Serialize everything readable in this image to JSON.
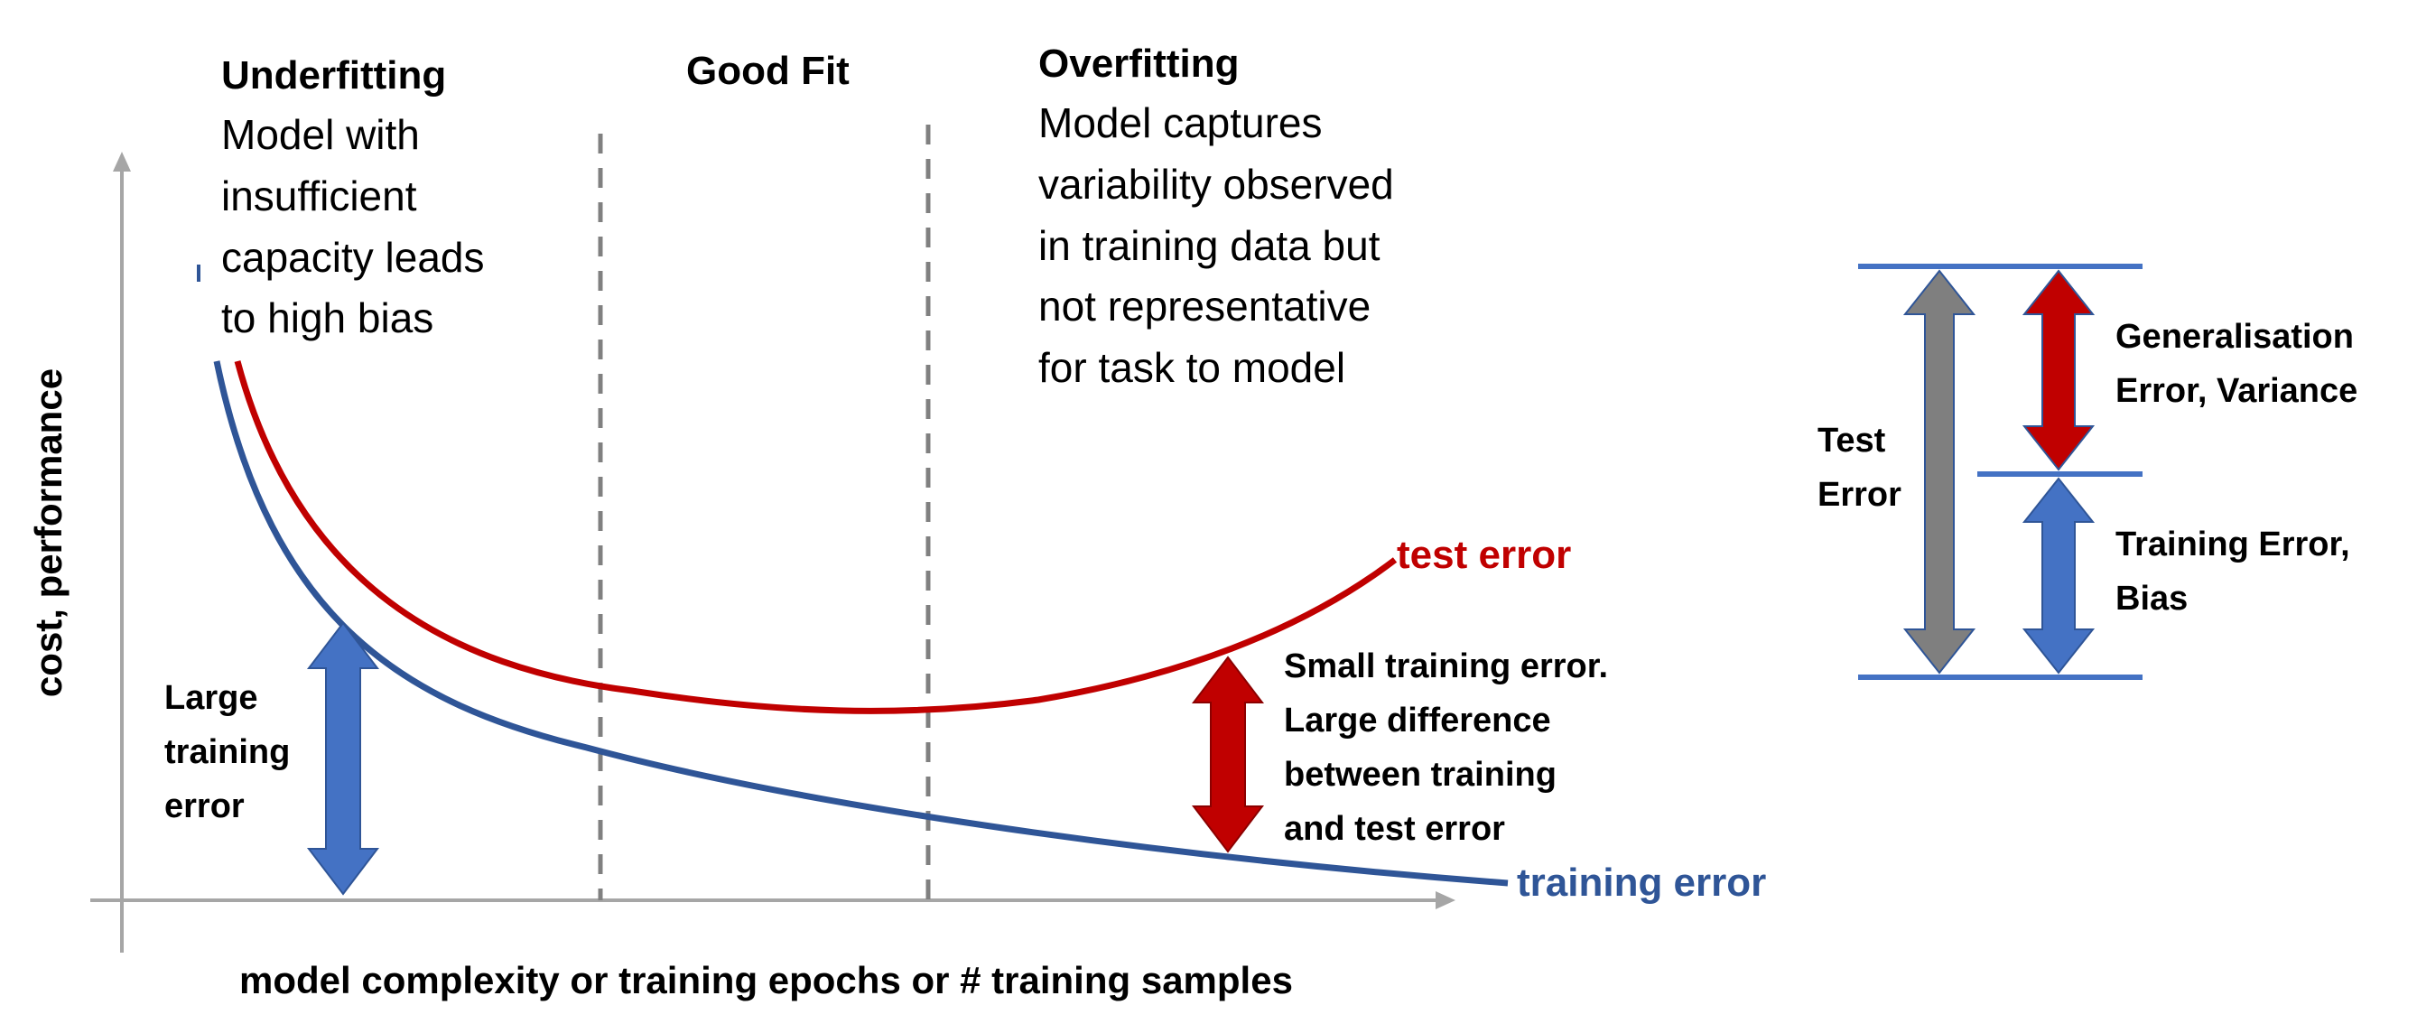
{
  "colors": {
    "test_curve": "#C00000",
    "training_curve": "#2F5597",
    "axis": "#A6A6A6",
    "divider": "#808080",
    "blue_arrow": "#4472C4",
    "red_arrow": "#C00000",
    "gray_arrow": "#7F7F7F",
    "legend_line": "#4472C4",
    "text": "#000000"
  },
  "regions": {
    "underfitting": {
      "title": "Underfitting",
      "lines": [
        "Model with",
        "insufficient",
        "capacity leads",
        "to high bias"
      ]
    },
    "good_fit": {
      "title": "Good Fit"
    },
    "overfitting": {
      "title": "Overfitting",
      "lines": [
        "Model captures",
        "variability observed",
        "in training data but",
        "not representative",
        "for task to model"
      ]
    }
  },
  "axes": {
    "y_label": "cost, performance",
    "x_label": "model complexity or training epochs or # training samples"
  },
  "curves": {
    "test_label": "test error",
    "training_label": "training error"
  },
  "annotations": {
    "large_training_error": [
      "Large",
      "training",
      "error"
    ],
    "small_training_error": [
      "Small training error.",
      "Large difference",
      "between training",
      "and test error"
    ]
  },
  "legend": {
    "test_error": [
      "Test",
      "Error"
    ],
    "generalisation": [
      "Generalisation",
      "Error, Variance"
    ],
    "training": [
      "Training Error,",
      "Bias"
    ]
  }
}
